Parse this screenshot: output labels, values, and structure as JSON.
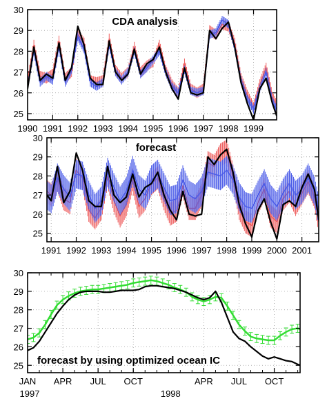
{
  "chart_data": [
    {
      "type": "line",
      "title": "CDA analysis",
      "xlabel": "",
      "ylabel": "",
      "xlim": [
        1990,
        1999.92
      ],
      "ylim": [
        24.7,
        30
      ],
      "yticks": [
        25,
        26,
        27,
        28,
        29,
        30
      ],
      "xticks": [
        {
          "x": 1990,
          "label": "1990"
        },
        {
          "x": 1991,
          "label": "1991"
        },
        {
          "x": 1992,
          "label": "1992"
        },
        {
          "x": 1993,
          "label": "1993"
        },
        {
          "x": 1994,
          "label": "1994"
        },
        {
          "x": 1995,
          "label": "1995"
        },
        {
          "x": 1996,
          "label": "1996"
        },
        {
          "x": 1997,
          "label": "1997"
        },
        {
          "x": 1998,
          "label": "1998"
        },
        {
          "x": 1999,
          "label": "1999"
        }
      ],
      "grid": "dotted",
      "series": [
        {
          "color": "#000000",
          "style": "solid",
          "x": [
            1990,
            1990.25,
            1990.5,
            1990.75,
            1991,
            1991.25,
            1991.5,
            1991.75,
            1992,
            1992.25,
            1992.5,
            1992.75,
            1993,
            1993.25,
            1993.5,
            1993.75,
            1994,
            1994.25,
            1994.5,
            1994.75,
            1995,
            1995.25,
            1995.5,
            1995.75,
            1996,
            1996.25,
            1996.5,
            1996.75,
            1997,
            1997.25,
            1997.5,
            1997.75,
            1998,
            1998.25,
            1998.5,
            1998.75,
            1999,
            1999.25,
            1999.5,
            1999.75,
            1999.92
          ],
          "y": [
            26.2,
            28.2,
            26.6,
            26.9,
            26.7,
            28.4,
            26.6,
            27.2,
            29.2,
            28.3,
            26.7,
            26.4,
            26.4,
            28.5,
            27.0,
            26.6,
            26.9,
            28.1,
            26.9,
            27.4,
            27.6,
            28.2,
            27.0,
            26.2,
            25.7,
            27.2,
            26.0,
            25.9,
            26.0,
            29.0,
            28.6,
            29.1,
            29.4,
            28.2,
            26.5,
            25.5,
            24.7,
            26.2,
            26.7,
            25.5,
            24.9
          ]
        },
        {
          "color": "#ee5c5c",
          "style": "errorbar",
          "x": [
            1990,
            1990.25,
            1990.5,
            1990.75,
            1991,
            1991.25,
            1991.5,
            1991.75,
            1992,
            1992.25,
            1992.5,
            1992.75,
            1993,
            1993.25,
            1993.5,
            1993.75,
            1994,
            1994.25,
            1994.5,
            1994.75,
            1995,
            1995.25,
            1995.5,
            1995.75,
            1996,
            1996.25,
            1996.5,
            1996.75,
            1997,
            1997.25,
            1997.5,
            1997.75,
            1998,
            1998.25,
            1998.5,
            1998.75,
            1999,
            1999.25,
            1999.5,
            1999.75,
            1999.92
          ],
          "y": [
            26.5,
            28.3,
            26.8,
            26.7,
            26.9,
            28.5,
            26.7,
            27.0,
            28.8,
            28.4,
            26.6,
            26.5,
            26.6,
            28.6,
            27.1,
            26.7,
            27.0,
            28.2,
            27.0,
            27.3,
            27.5,
            28.3,
            27.1,
            26.4,
            26.0,
            27.4,
            26.2,
            26.0,
            26.2,
            29.0,
            28.8,
            29.3,
            29.2,
            28.4,
            26.7,
            25.9,
            25.3,
            26.4,
            27.2,
            25.8,
            25.4
          ],
          "err": 0.25
        },
        {
          "color": "#4a5be8",
          "style": "errorbar",
          "x": [
            1990,
            1990.25,
            1990.5,
            1990.75,
            1991,
            1991.25,
            1991.5,
            1991.75,
            1992,
            1992.25,
            1992.5,
            1992.75,
            1993,
            1993.25,
            1993.5,
            1993.75,
            1994,
            1994.25,
            1994.5,
            1994.75,
            1995,
            1995.25,
            1995.5,
            1995.75,
            1996,
            1996.25,
            1996.5,
            1996.75,
            1997,
            1997.25,
            1997.5,
            1997.75,
            1998,
            1998.25,
            1998.5,
            1998.75,
            1999,
            1999.25,
            1999.5,
            1999.75,
            1999.92
          ],
          "y": [
            26.3,
            28.0,
            26.5,
            26.8,
            26.6,
            28.2,
            26.5,
            27.1,
            28.7,
            28.1,
            26.5,
            26.3,
            26.5,
            28.3,
            27.0,
            26.6,
            27.0,
            28.0,
            26.9,
            27.2,
            27.6,
            28.0,
            27.0,
            26.3,
            26.0,
            27.1,
            26.1,
            26.0,
            26.1,
            28.8,
            28.9,
            29.5,
            29.3,
            28.2,
            26.6,
            25.7,
            25.2,
            26.2,
            27.0,
            25.6,
            25.2
          ],
          "err": 0.2
        }
      ]
    },
    {
      "type": "line",
      "title": "forecast",
      "xlabel": "",
      "ylabel": "",
      "xlim": [
        1990.83,
        2001.67
      ],
      "ylim": [
        24.55,
        30
      ],
      "yticks": [
        25,
        26,
        27,
        28,
        29,
        30
      ],
      "xticks": [
        {
          "x": 1991,
          "label": "1991"
        },
        {
          "x": 1992,
          "label": "1992"
        },
        {
          "x": 1993,
          "label": "1993"
        },
        {
          "x": 1994,
          "label": "1994"
        },
        {
          "x": 1995,
          "label": "1995"
        },
        {
          "x": 1996,
          "label": "1996"
        },
        {
          "x": 1997,
          "label": "1997"
        },
        {
          "x": 1998,
          "label": "1998"
        },
        {
          "x": 1999,
          "label": "1999"
        },
        {
          "x": 2000,
          "label": "2000"
        },
        {
          "x": 2001,
          "label": "2001"
        }
      ],
      "grid": "dotted",
      "series": [
        {
          "color": "#000000",
          "style": "solid",
          "x": [
            1990.83,
            1991,
            1991.25,
            1991.5,
            1991.75,
            1992,
            1992.25,
            1992.5,
            1992.75,
            1993,
            1993.25,
            1993.5,
            1993.75,
            1994,
            1994.25,
            1994.5,
            1994.75,
            1995,
            1995.25,
            1995.5,
            1995.75,
            1996,
            1996.25,
            1996.5,
            1996.75,
            1997,
            1997.25,
            1997.5,
            1997.75,
            1998,
            1998.25,
            1998.5,
            1998.75,
            1999,
            1999.25,
            1999.5,
            1999.75,
            2000,
            2000.25,
            2000.5,
            2000.75,
            2001,
            2001.25,
            2001.5,
            2001.67
          ],
          "y": [
            27.0,
            26.7,
            28.5,
            26.6,
            27.2,
            29.2,
            28.3,
            26.7,
            26.4,
            26.4,
            28.5,
            27.0,
            26.6,
            26.9,
            28.1,
            26.9,
            27.4,
            27.6,
            28.2,
            27.0,
            26.2,
            25.7,
            27.2,
            26.0,
            25.9,
            26.0,
            29.0,
            28.6,
            29.1,
            29.4,
            28.2,
            26.5,
            25.5,
            24.8,
            26.2,
            26.8,
            25.6,
            24.7,
            26.5,
            26.7,
            26.4,
            27.4,
            28.1,
            27.3,
            25.7
          ]
        },
        {
          "color": "#ee5c5c",
          "style": "errorbar",
          "x": [
            1990.83,
            1991,
            1991.25,
            1991.5,
            1991.75,
            1992,
            1992.25,
            1992.5,
            1992.75,
            1993,
            1993.25,
            1993.5,
            1993.75,
            1994,
            1994.25,
            1994.5,
            1994.75,
            1995,
            1995.25,
            1995.5,
            1995.75,
            1996,
            1996.25,
            1996.5,
            1996.75,
            1997,
            1997.25,
            1997.5,
            1997.75,
            1998,
            1998.25,
            1998.5,
            1998.75,
            1999,
            1999.25,
            1999.5,
            1999.75,
            2000,
            2000.25,
            2000.5,
            2000.75,
            2001,
            2001.25,
            2001.5,
            2001.67
          ],
          "y": [
            27.2,
            27.0,
            27.8,
            26.8,
            26.6,
            28.3,
            27.9,
            26.2,
            25.8,
            26.3,
            28.0,
            26.7,
            25.9,
            26.5,
            27.8,
            26.4,
            26.8,
            27.6,
            27.9,
            26.8,
            26.0,
            26.2,
            27.5,
            26.3,
            26.3,
            27.0,
            28.7,
            28.5,
            29.1,
            29.3,
            28.0,
            26.3,
            25.6,
            25.4,
            26.6,
            27.3,
            25.9,
            25.6,
            26.8,
            27.2,
            26.5,
            27.1,
            27.7,
            26.9,
            25.6
          ],
          "err": 0.6
        },
        {
          "color": "#4a5be8",
          "style": "errorbar",
          "x": [
            1990.83,
            1991,
            1991.25,
            1991.5,
            1991.75,
            1992,
            1992.25,
            1992.5,
            1992.75,
            1993,
            1993.25,
            1993.5,
            1993.75,
            1994,
            1994.25,
            1994.5,
            1994.75,
            1995,
            1995.25,
            1995.5,
            1995.75,
            1996,
            1996.25,
            1996.5,
            1996.75,
            1997,
            1997.25,
            1997.5,
            1997.75,
            1998,
            1998.25,
            1998.5,
            1998.75,
            1999,
            1999.25,
            1999.5,
            1999.75,
            2000,
            2000.25,
            2000.5,
            2000.75,
            2001,
            2001.25,
            2001.5,
            2001.67
          ],
          "y": [
            27.0,
            26.8,
            27.9,
            27.3,
            26.9,
            28.1,
            28.0,
            27.0,
            26.3,
            26.7,
            28.2,
            27.4,
            26.7,
            27.2,
            28.3,
            27.3,
            27.0,
            27.8,
            28.1,
            27.4,
            26.7,
            26.8,
            27.8,
            27.0,
            26.8,
            27.2,
            28.2,
            28.1,
            28.0,
            28.3,
            27.8,
            26.9,
            26.4,
            26.3,
            27.0,
            27.6,
            26.8,
            26.4,
            27.1,
            27.6,
            27.0,
            27.3,
            27.9,
            27.2,
            26.2
          ],
          "err": 0.75
        }
      ]
    },
    {
      "type": "line",
      "title": "",
      "annotation": "forecast by using optimized ocean IC",
      "xlabel": "",
      "ylabel": "",
      "xlim": [
        0,
        23.2
      ],
      "ylim": [
        24.6,
        30
      ],
      "yticks": [
        25,
        26,
        27,
        28,
        29,
        30
      ],
      "xticks": [
        {
          "x": 0,
          "label": "JAN"
        },
        {
          "x": 3,
          "label": "APR"
        },
        {
          "x": 6,
          "label": "JUL"
        },
        {
          "x": 9,
          "label": "OCT"
        },
        {
          "x": 15,
          "label": "APR"
        },
        {
          "x": 18,
          "label": "JUL"
        },
        {
          "x": 21,
          "label": "OCT"
        }
      ],
      "xticks_minor": [
        0,
        1,
        2,
        3,
        4,
        5,
        6,
        7,
        8,
        9,
        10,
        11,
        12,
        13,
        14,
        15,
        16,
        17,
        18,
        19,
        20,
        21,
        22,
        23
      ],
      "year_labels": [
        {
          "x": 0,
          "label": "1997"
        },
        {
          "x": 12,
          "label": "1998"
        }
      ],
      "grid": "dotted",
      "series": [
        {
          "color": "#000000",
          "style": "solid",
          "x": [
            0,
            0.5,
            1,
            1.5,
            2,
            2.5,
            3,
            3.5,
            4,
            4.5,
            5,
            5.5,
            6,
            6.5,
            7,
            7.5,
            8,
            8.5,
            9,
            9.5,
            10,
            10.5,
            11,
            11.5,
            12,
            12.5,
            13,
            13.5,
            14,
            14.5,
            15,
            15.5,
            16,
            16.5,
            17,
            17.5,
            18,
            18.5,
            19,
            19.5,
            20,
            20.5,
            21,
            21.5,
            22,
            22.5,
            23,
            23.2
          ],
          "y": [
            25.8,
            25.95,
            26.3,
            26.8,
            27.3,
            27.8,
            28.2,
            28.55,
            28.8,
            28.95,
            29.0,
            29.0,
            29.0,
            28.95,
            28.95,
            29.0,
            29.05,
            29.05,
            29.05,
            29.1,
            29.25,
            29.3,
            29.3,
            29.25,
            29.2,
            29.15,
            29.05,
            28.95,
            28.8,
            28.65,
            28.55,
            28.65,
            29.0,
            28.4,
            27.6,
            26.8,
            26.45,
            26.3,
            26.0,
            25.75,
            25.5,
            25.35,
            25.45,
            25.35,
            25.25,
            25.2,
            25.05,
            25.0
          ]
        },
        {
          "color": "#33dd33",
          "style": "errorbar",
          "x": [
            0,
            0.5,
            1,
            1.5,
            2,
            2.5,
            3,
            3.5,
            4,
            4.5,
            5,
            5.5,
            6,
            6.5,
            7,
            7.5,
            8,
            8.5,
            9,
            9.5,
            10,
            10.5,
            11,
            11.5,
            12,
            12.5,
            13,
            13.5,
            14,
            14.5,
            15,
            15.5,
            16,
            16.5,
            17,
            17.5,
            18,
            18.5,
            19,
            19.5,
            20,
            20.5,
            21,
            21.5,
            22,
            22.5,
            23,
            23.2
          ],
          "y": [
            26.4,
            26.5,
            26.75,
            27.2,
            27.75,
            28.25,
            28.55,
            28.75,
            28.9,
            29.0,
            29.05,
            29.1,
            29.1,
            29.15,
            29.2,
            29.25,
            29.3,
            29.35,
            29.45,
            29.5,
            29.55,
            29.6,
            29.55,
            29.45,
            29.35,
            29.2,
            29.1,
            28.95,
            28.7,
            28.55,
            28.45,
            28.55,
            28.7,
            28.65,
            28.2,
            27.7,
            27.2,
            26.85,
            26.55,
            26.45,
            26.4,
            26.35,
            26.35,
            26.6,
            26.8,
            26.95,
            27.0,
            26.95
          ],
          "err": 0.22
        }
      ]
    }
  ]
}
